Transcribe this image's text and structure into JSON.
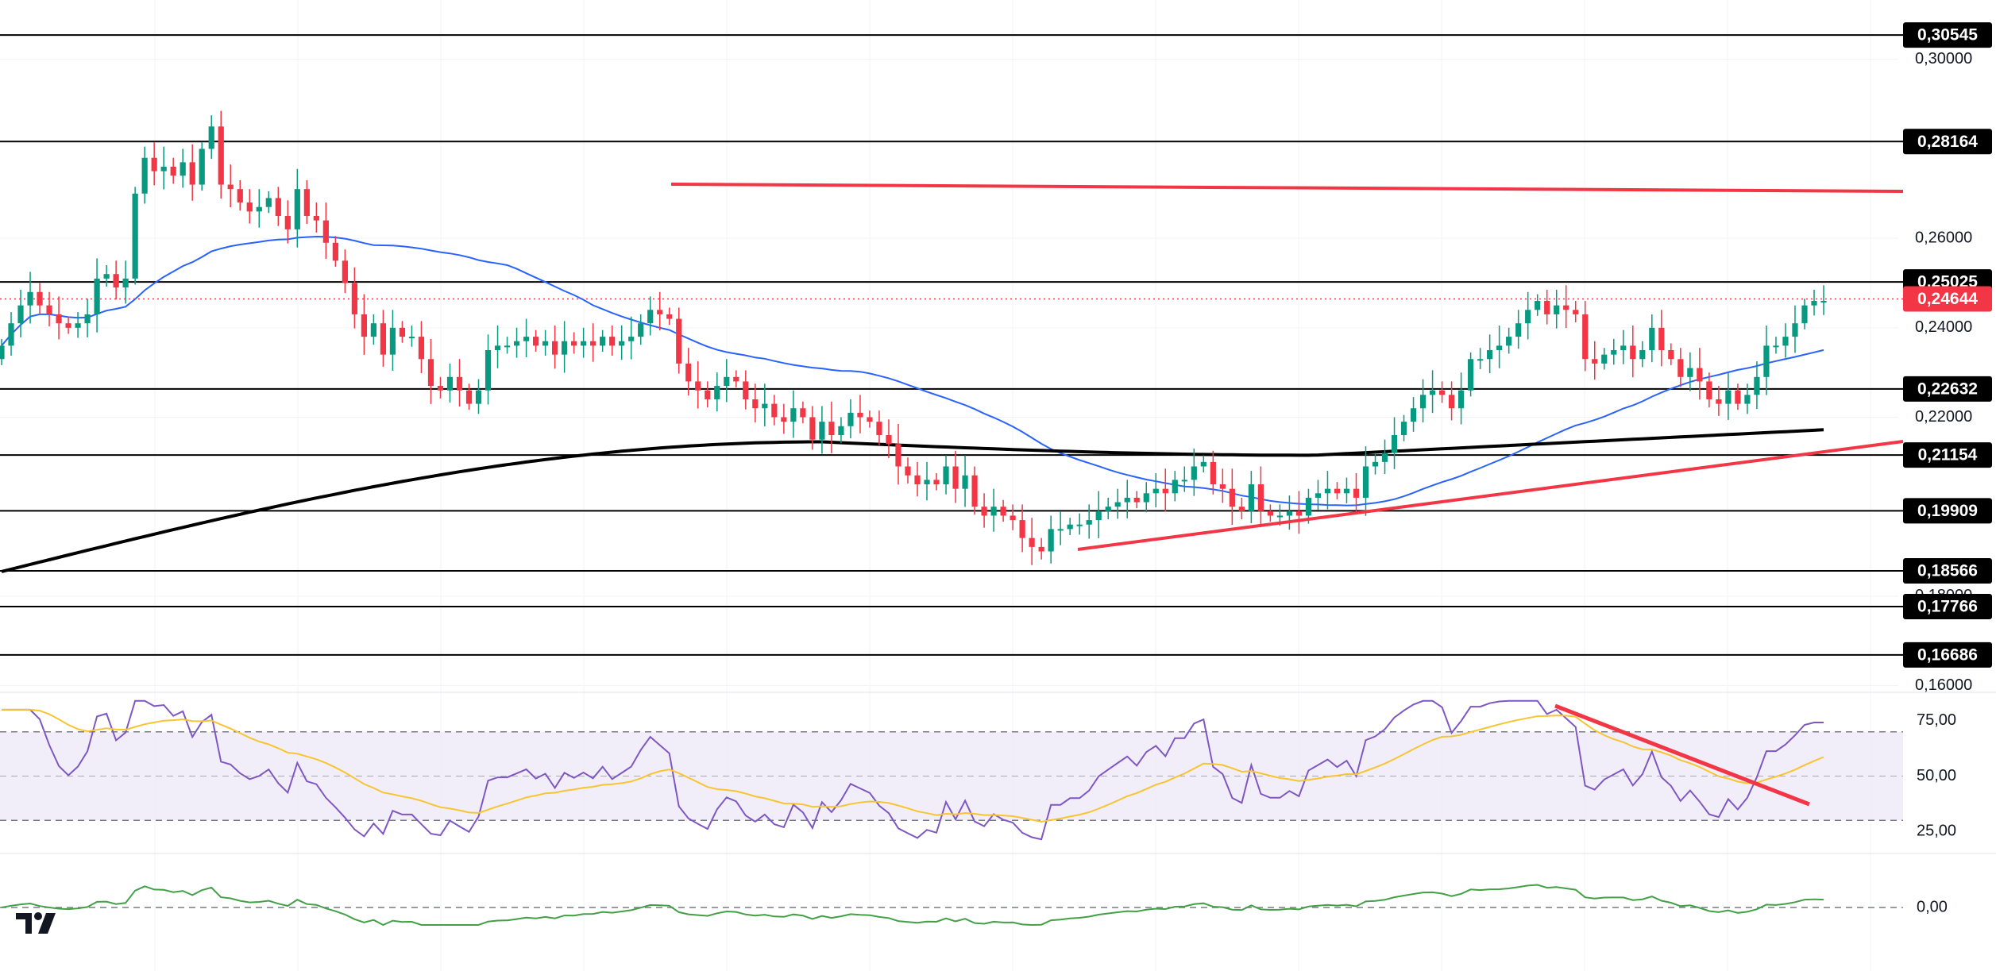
{
  "chart_data": {
    "type": "candlestick",
    "price_axis": {
      "ticks": [
        "0,30000",
        "0,26000",
        "0,24000",
        "0,22000",
        "0,18000",
        "0,16000"
      ],
      "ylim": [
        0.1585,
        0.3115
      ]
    },
    "current_price": {
      "label": "0,24644",
      "value": 0.24644,
      "color": "#f23645"
    },
    "levels": [
      {
        "label": "0,30545",
        "value": 0.30545
      },
      {
        "label": "0,28164",
        "value": 0.28164
      },
      {
        "label": "0,25025",
        "value": 0.25025
      },
      {
        "label": "0,22632",
        "value": 0.22632
      },
      {
        "label": "0,21154",
        "value": 0.21154
      },
      {
        "label": "0,19909",
        "value": 0.19909
      },
      {
        "label": "0,18566",
        "value": 0.18566
      },
      {
        "label": "0,17766",
        "value": 0.17766
      },
      {
        "label": "0,16686",
        "value": 0.16686
      }
    ],
    "closes": [
      0.236,
      0.241,
      0.245,
      0.248,
      0.245,
      0.243,
      0.241,
      0.24,
      0.241,
      0.243,
      0.251,
      0.252,
      0.249,
      0.251,
      0.27,
      0.278,
      0.275,
      0.276,
      0.274,
      0.277,
      0.272,
      0.28,
      0.285,
      0.272,
      0.271,
      0.268,
      0.266,
      0.267,
      0.269,
      0.265,
      0.262,
      0.271,
      0.265,
      0.264,
      0.259,
      0.255,
      0.25,
      0.243,
      0.238,
      0.241,
      0.234,
      0.24,
      0.238,
      0.238,
      0.233,
      0.227,
      0.226,
      0.229,
      0.226,
      0.223,
      0.226,
      0.235,
      0.236,
      0.236,
      0.237,
      0.238,
      0.236,
      0.237,
      0.234,
      0.237,
      0.236,
      0.237,
      0.236,
      0.238,
      0.236,
      0.237,
      0.238,
      0.241,
      0.244,
      0.243,
      0.242,
      0.232,
      0.228,
      0.226,
      0.224,
      0.227,
      0.229,
      0.228,
      0.224,
      0.222,
      0.223,
      0.22,
      0.219,
      0.222,
      0.22,
      0.215,
      0.219,
      0.216,
      0.218,
      0.221,
      0.22,
      0.219,
      0.216,
      0.214,
      0.209,
      0.207,
      0.205,
      0.206,
      0.205,
      0.209,
      0.204,
      0.207,
      0.2,
      0.198,
      0.2,
      0.198,
      0.197,
      0.193,
      0.191,
      0.19,
      0.195,
      0.195,
      0.196,
      0.196,
      0.197,
      0.199,
      0.2,
      0.201,
      0.202,
      0.201,
      0.203,
      0.204,
      0.203,
      0.206,
      0.206,
      0.209,
      0.21,
      0.205,
      0.204,
      0.2,
      0.199,
      0.205,
      0.199,
      0.198,
      0.198,
      0.199,
      0.198,
      0.202,
      0.203,
      0.204,
      0.203,
      0.204,
      0.202,
      0.209,
      0.21,
      0.212,
      0.216,
      0.219,
      0.222,
      0.225,
      0.226,
      0.225,
      0.222,
      0.226,
      0.233,
      0.233,
      0.235,
      0.236,
      0.238,
      0.241,
      0.244,
      0.246,
      0.243,
      0.245,
      0.244,
      0.243,
      0.233,
      0.232,
      0.234,
      0.235,
      0.236,
      0.233,
      0.235,
      0.24,
      0.235,
      0.233,
      0.229,
      0.231,
      0.228,
      0.224,
      0.223,
      0.226,
      0.223,
      0.225,
      0.229,
      0.236,
      0.236,
      0.238,
      0.241,
      0.245,
      0.246,
      0.246
    ]
  },
  "indicators": {
    "rsi": {
      "levels": [
        {
          "label": "75,00",
          "value": 75
        },
        {
          "label": "50,00",
          "value": 50
        },
        {
          "label": "25,00",
          "value": 25
        }
      ],
      "line_color": "#7e57c2",
      "signal_color": "#f7c531",
      "band_color": "#ede7f6"
    },
    "oscillator": {
      "zero_label": "0,00",
      "line_color": "#43a047"
    }
  },
  "moving_averages": [
    {
      "color": "#2962ff"
    },
    {
      "color": "#000000"
    }
  ],
  "colors": {
    "up": "#089981",
    "down": "#f23645",
    "trendline": "#f23645",
    "level_line": "#000000",
    "level_tag": "#000000"
  }
}
